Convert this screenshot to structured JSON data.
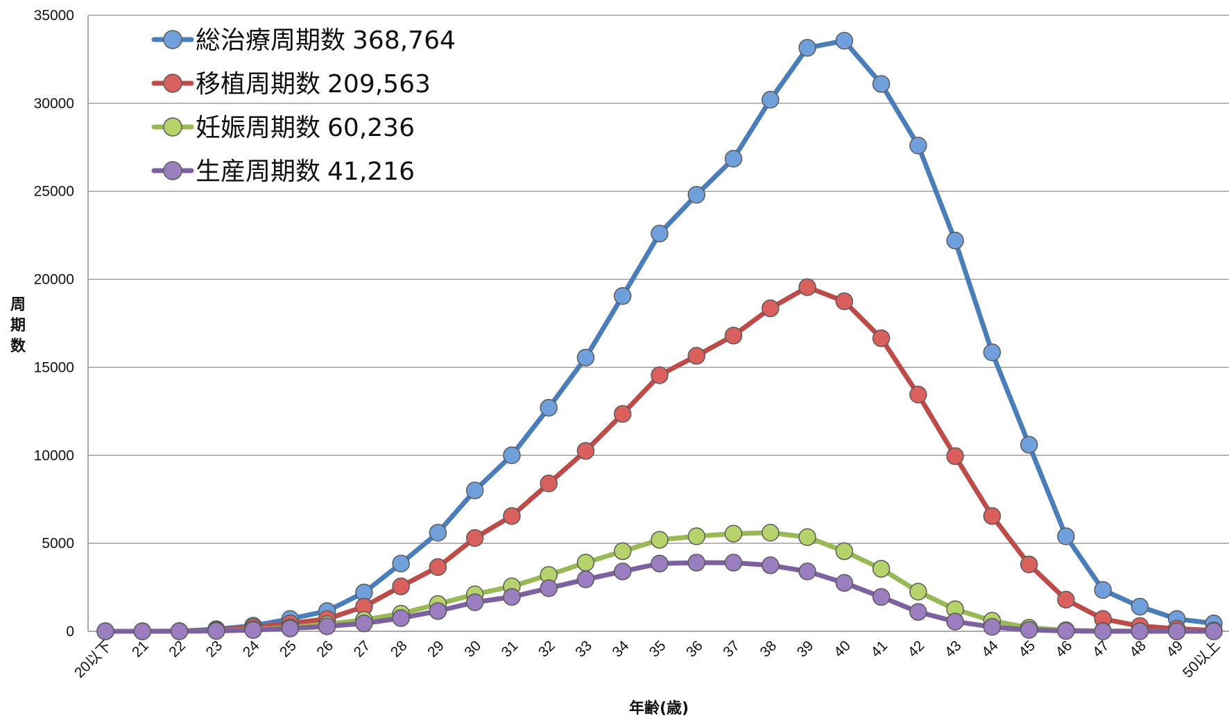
{
  "chart_data": {
    "type": "line",
    "title": "",
    "xlabel": "年齢(歳)",
    "ylabel": "周期数",
    "ylim": [
      0,
      35000
    ],
    "yticks": [
      0,
      5000,
      10000,
      15000,
      20000,
      25000,
      30000,
      35000
    ],
    "grid": true,
    "legend_position": "top-left",
    "categories": [
      "20以下",
      "21",
      "22",
      "23",
      "24",
      "25",
      "26",
      "27",
      "28",
      "29",
      "30",
      "31",
      "32",
      "33",
      "34",
      "35",
      "36",
      "37",
      "38",
      "39",
      "40",
      "41",
      "42",
      "43",
      "44",
      "45",
      "46",
      "47",
      "48",
      "49",
      "50以上"
    ],
    "series": [
      {
        "name": "総治療周期数",
        "total": "368,764",
        "color": "#4a7ebb",
        "marker": "#6fa0dc",
        "values": [
          0,
          0,
          10,
          120,
          320,
          700,
          1150,
          2200,
          3850,
          5600,
          8000,
          10000,
          12700,
          15550,
          19050,
          22600,
          24800,
          26850,
          30200,
          33150,
          33550,
          31100,
          27600,
          22200,
          15850,
          10600,
          5400,
          2350,
          1400,
          700,
          450
        ]
      },
      {
        "name": "移植周期数",
        "total": "209,563",
        "color": "#be4b48",
        "marker": "#d9605c",
        "values": [
          0,
          0,
          5,
          80,
          230,
          450,
          700,
          1400,
          2550,
          3650,
          5300,
          6550,
          8400,
          10250,
          12350,
          14550,
          15650,
          16800,
          18350,
          19550,
          18750,
          16650,
          13450,
          9950,
          6550,
          3800,
          1800,
          700,
          300,
          150,
          50
        ]
      },
      {
        "name": "妊娠周期数",
        "total": "60,236",
        "color": "#98b954",
        "marker": "#b6d36b",
        "values": [
          0,
          0,
          0,
          30,
          100,
          220,
          400,
          650,
          1000,
          1550,
          2100,
          2550,
          3200,
          3900,
          4550,
          5200,
          5400,
          5550,
          5600,
          5350,
          4550,
          3550,
          2250,
          1250,
          600,
          200,
          60,
          20,
          10,
          0,
          0
        ]
      },
      {
        "name": "生産周期数",
        "total": "41,216",
        "color": "#7d60a0",
        "marker": "#9a7ebf",
        "values": [
          0,
          0,
          0,
          20,
          70,
          160,
          280,
          450,
          750,
          1150,
          1650,
          1950,
          2450,
          2950,
          3400,
          3850,
          3900,
          3900,
          3750,
          3400,
          2750,
          1950,
          1100,
          550,
          250,
          80,
          20,
          0,
          0,
          0,
          0
        ]
      }
    ]
  }
}
